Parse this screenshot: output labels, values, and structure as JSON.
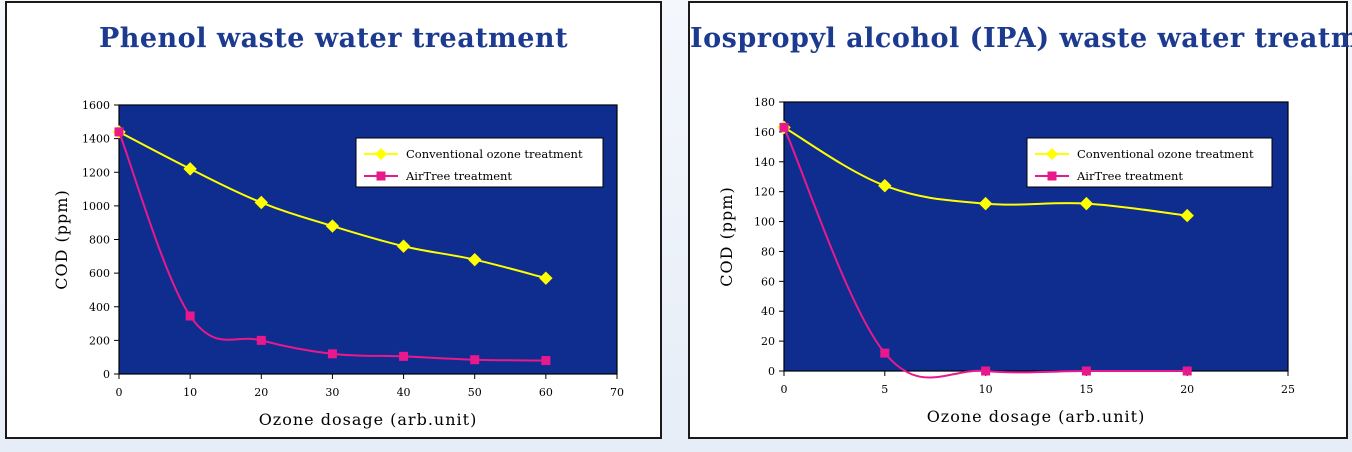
{
  "charts": {
    "colors": {
      "plot_bg": "#0f2c8f",
      "conventional": "#ffff00",
      "airtree": "#e8198c",
      "legend_bg": "#ffffff"
    }
  },
  "chart_data": [
    {
      "type": "line",
      "title": "Phenol waste water treatment",
      "xlabel": "Ozone dosage (arb.unit)",
      "ylabel": "COD (ppm)",
      "xlim": [
        0,
        70
      ],
      "ylim": [
        0,
        1600
      ],
      "x_ticks": [
        "0",
        "10",
        "20",
        "30",
        "40",
        "50",
        "60",
        "70"
      ],
      "y_ticks": [
        "0",
        "200",
        "400",
        "600",
        "800",
        "1000",
        "1200",
        "1400",
        "1600"
      ],
      "legend_position": "top-right",
      "grid": false,
      "series": [
        {
          "name": "Conventional ozone treatment",
          "marker": "diamond",
          "x": [
            0,
            10,
            20,
            30,
            40,
            50,
            60
          ],
          "y": [
            1440,
            1220,
            1020,
            880,
            760,
            680,
            570
          ]
        },
        {
          "name": "AirTree treatment",
          "marker": "square",
          "x": [
            0,
            10,
            20,
            30,
            40,
            50,
            60
          ],
          "y": [
            1440,
            345,
            200,
            120,
            105,
            85,
            80
          ]
        }
      ]
    },
    {
      "type": "line",
      "title": "Iospropyl alcohol (IPA) waste water treatment",
      "xlabel": "Ozone dosage (arb.unit)",
      "ylabel": "COD (ppm)",
      "xlim": [
        0,
        25
      ],
      "ylim": [
        0,
        180
      ],
      "x_ticks": [
        "0",
        "5",
        "10",
        "15",
        "20",
        "25"
      ],
      "y_ticks": [
        "0",
        "20",
        "40",
        "60",
        "80",
        "100",
        "120",
        "140",
        "160",
        "180"
      ],
      "legend_position": "top-right",
      "grid": false,
      "series": [
        {
          "name": "Conventional ozone treatment",
          "marker": "diamond",
          "x": [
            0,
            5,
            10,
            15,
            20
          ],
          "y": [
            163,
            124,
            112,
            112,
            104
          ]
        },
        {
          "name": "AirTree treatment",
          "marker": "square",
          "x": [
            0,
            5,
            10,
            15,
            20
          ],
          "y": [
            163,
            12,
            0,
            0,
            0
          ]
        }
      ]
    }
  ]
}
